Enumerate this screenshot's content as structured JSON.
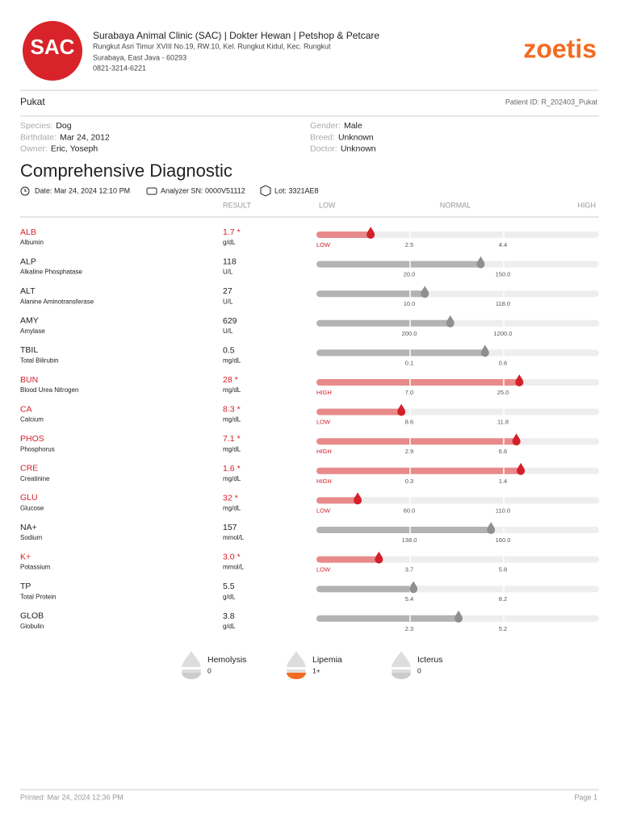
{
  "header": {
    "logo_text": "SAC",
    "clinic_name": "Surabaya Animal Clinic (SAC) | Dokter Hewan | Petshop & Petcare",
    "address_1": "Rungkut Asri Timur XVIII No.19, RW.10, Kel. Rungkut Kidul, Kec. Rungkut",
    "address_2": "Surabaya, East Java - 60293",
    "phone": "0821-3214-6221",
    "brand": "zoetis"
  },
  "patient": {
    "name": "Pukat",
    "patient_id": "Patient ID: R_202403_Pukat",
    "left": [
      {
        "label": "Species:",
        "value": "Dog"
      },
      {
        "label": "Birthdate:",
        "value": "Mar 24, 2012"
      },
      {
        "label": "Owner:",
        "value": "Eric, Yoseph"
      }
    ],
    "right": [
      {
        "label": "Gender:",
        "value": "Male"
      },
      {
        "label": "Breed:",
        "value": "Unknown"
      },
      {
        "label": "Doctor:",
        "value": "Unknown"
      }
    ]
  },
  "report": {
    "title": "Comprehensive Diagnostic",
    "date": "Date: Mar 24, 2024 12:10 PM",
    "analyzer": "Analyzer SN: 0000V51112",
    "lot": "Lot: 3321AE8",
    "columns": {
      "result": "RESULT",
      "low": "LOW",
      "normal": "NORMAL",
      "high": "HIGH"
    },
    "rows": [
      {
        "code": "ALB",
        "name": "Albumin",
        "result": "1.7",
        "mark": "*",
        "unit": "g/dL",
        "status": "LOW",
        "low": "2.5",
        "high": "4.4"
      },
      {
        "code": "ALP",
        "name": "Alkaline Phosphatase",
        "result": "118",
        "unit": "U/L",
        "low": "20.0",
        "high": "150.0"
      },
      {
        "code": "ALT",
        "name": "Alanine Aminotransferase",
        "result": "27",
        "unit": "U/L",
        "low": "10.0",
        "high": "118.0"
      },
      {
        "code": "AMY",
        "name": "Amylase",
        "result": "629",
        "unit": "U/L",
        "low": "200.0",
        "high": "1200.0"
      },
      {
        "code": "TBIL",
        "name": "Total Bilirubin",
        "result": "0.5",
        "unit": "mg/dL",
        "low": "0.1",
        "high": "0.6"
      },
      {
        "code": "BUN",
        "name": "Blood Urea Nitrogen",
        "result": "28",
        "mark": "*",
        "unit": "mg/dL",
        "status": "HIGH",
        "low": "7.0",
        "high": "25.0"
      },
      {
        "code": "CA",
        "name": "Calcium",
        "result": "8.3",
        "mark": "*",
        "unit": "mg/dL",
        "status": "LOW",
        "low": "8.6",
        "high": "11.8"
      },
      {
        "code": "PHOS",
        "name": "Phosphorus",
        "result": "7.1",
        "mark": "*",
        "unit": "mg/dL",
        "status": "HIGH",
        "low": "2.9",
        "high": "6.6"
      },
      {
        "code": "CRE",
        "name": "Creatinine",
        "result": "1.6",
        "mark": "*",
        "unit": "mg/dL",
        "status": "HIGH",
        "low": "0.3",
        "high": "1.4"
      },
      {
        "code": "GLU",
        "name": "Glucose",
        "result": "32",
        "mark": "*",
        "unit": "mg/dL",
        "status": "LOW",
        "low": "60.0",
        "high": "110.0"
      },
      {
        "code": "NA+",
        "name": "Sodium",
        "result": "157",
        "unit": "mmol/L",
        "low": "138.0",
        "high": "160.0"
      },
      {
        "code": "K+",
        "name": "Potassium",
        "result": "3.0",
        "mark": "*",
        "unit": "mmol/L",
        "status": "LOW",
        "low": "3.7",
        "high": "5.8"
      },
      {
        "code": "TP",
        "name": "Total Protein",
        "result": "5.5",
        "unit": "g/dL",
        "low": "5.4",
        "high": "8.2"
      },
      {
        "code": "GLOB",
        "name": "Globulin",
        "result": "3.8",
        "unit": "g/dL",
        "low": "2.3",
        "high": "5.2"
      }
    ],
    "indices": [
      {
        "name": "Hemolysis",
        "value": "0"
      },
      {
        "name": "Lipemia",
        "value": "1+"
      },
      {
        "name": "Icterus",
        "value": "0"
      }
    ]
  },
  "footer": {
    "printed": "Printed: Mar 24, 2024 12:36 PM",
    "page": "Page 1"
  }
}
